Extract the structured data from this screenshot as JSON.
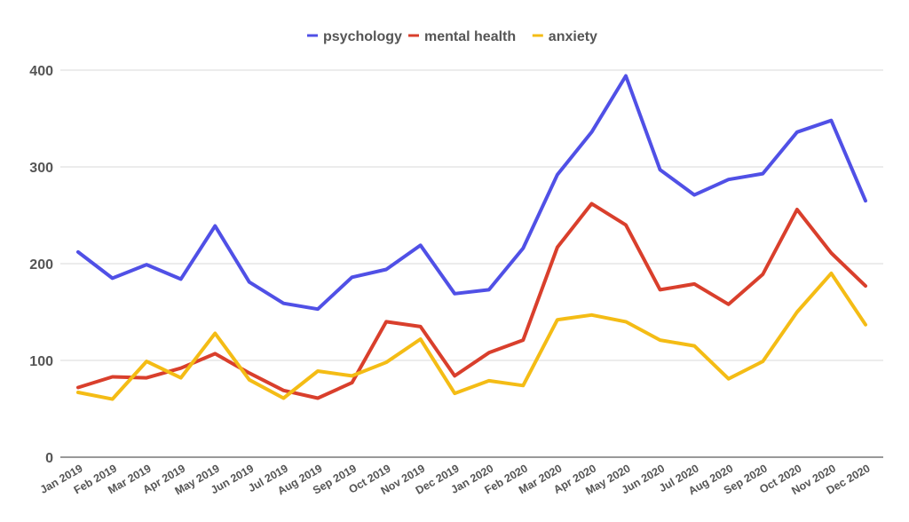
{
  "chart_data": {
    "type": "line",
    "title": "",
    "xlabel": "",
    "ylabel": "",
    "ylim": [
      0,
      400
    ],
    "yticks": [
      0,
      100,
      200,
      300,
      400
    ],
    "grid": true,
    "legend_position": "top-center",
    "categories": [
      "Jan 2019",
      "Feb 2019",
      "Mar 2019",
      "Apr 2019",
      "May 2019",
      "Jun 2019",
      "Jul 2019",
      "Aug 2019",
      "Sep 2019",
      "Oct 2019",
      "Nov 2019",
      "Dec 2019",
      "Jan 2020",
      "Feb 2020",
      "Mar 2020",
      "Apr 2020",
      "May 2020",
      "Jun 2020",
      "Jul 2020",
      "Aug 2020",
      "Sep 2020",
      "Oct 2020",
      "Nov 2020",
      "Dec 2020"
    ],
    "series": [
      {
        "name": "psychology",
        "color": "#5050e6",
        "values": [
          212,
          185,
          199,
          184,
          239,
          181,
          159,
          153,
          186,
          194,
          219,
          169,
          173,
          216,
          292,
          336,
          394,
          297,
          271,
          287,
          293,
          336,
          348,
          265
        ]
      },
      {
        "name": "mental health",
        "color": "#d93f2c",
        "values": [
          72,
          83,
          82,
          92,
          107,
          87,
          69,
          61,
          77,
          140,
          135,
          84,
          108,
          121,
          217,
          262,
          240,
          173,
          179,
          158,
          189,
          256,
          211,
          177
        ]
      },
      {
        "name": "anxiety",
        "color": "#f4bc15",
        "values": [
          67,
          60,
          99,
          82,
          128,
          80,
          61,
          89,
          84,
          98,
          122,
          66,
          79,
          74,
          142,
          147,
          140,
          121,
          115,
          81,
          99,
          150,
          190,
          137
        ]
      }
    ]
  }
}
